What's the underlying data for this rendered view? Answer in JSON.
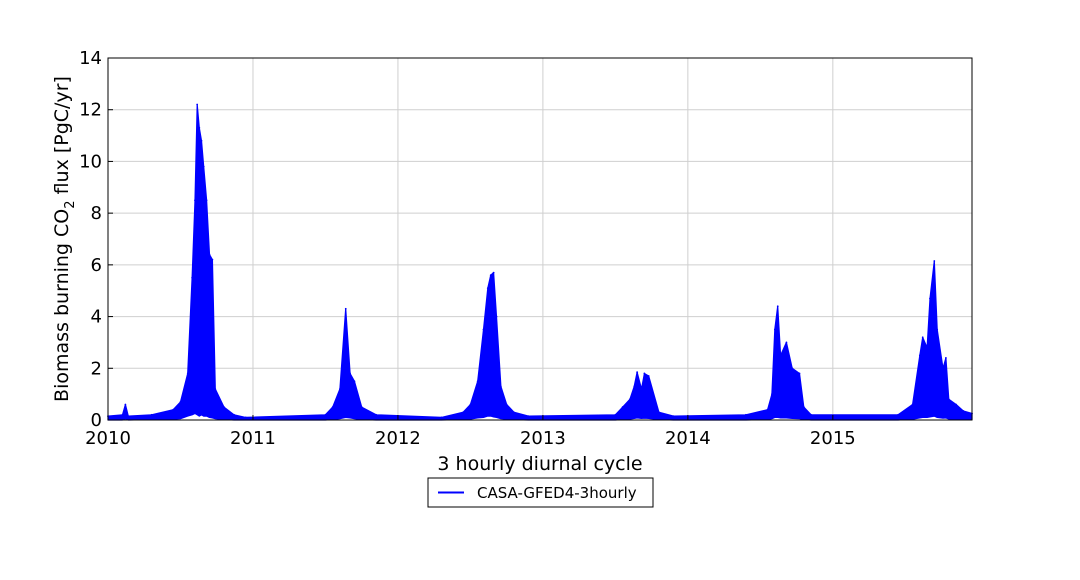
{
  "chart_data": {
    "type": "line",
    "title": "",
    "xlabel": "3 hourly diurnal cycle",
    "ylabel": {
      "prefix": "Biomass burning CO",
      "sub": "2",
      "suffix": " flux [PgC/yr]"
    },
    "xlim": [
      2010.0,
      2015.96
    ],
    "ylim": [
      0,
      14
    ],
    "x_ticks": [
      2010,
      2011,
      2012,
      2013,
      2014,
      2015
    ],
    "y_ticks": [
      0,
      2,
      4,
      6,
      8,
      10,
      12,
      14
    ],
    "grid": true,
    "legend_position": "bottom-center, below the axes",
    "series": [
      {
        "name": "CASA-GFED4-3hourly",
        "color": "#0000ff",
        "style": "dense 3-hourly band between daily minimum and daily maximum",
        "x": [
          2010.0,
          2010.1,
          2010.12,
          2010.14,
          2010.3,
          2010.45,
          2010.5,
          2010.55,
          2010.58,
          2010.6,
          2010.615,
          2010.63,
          2010.645,
          2010.66,
          2010.68,
          2010.7,
          2010.72,
          2010.74,
          2010.8,
          2010.87,
          2010.95,
          2011.5,
          2011.55,
          2011.6,
          2011.64,
          2011.67,
          2011.7,
          2011.75,
          2011.85,
          2012.3,
          2012.45,
          2012.5,
          2012.55,
          2012.59,
          2012.62,
          2012.64,
          2012.66,
          2012.68,
          2012.71,
          2012.75,
          2012.8,
          2012.9,
          2013.5,
          2013.55,
          2013.6,
          2013.63,
          2013.65,
          2013.68,
          2013.7,
          2013.73,
          2013.8,
          2013.9,
          2014.4,
          2014.55,
          2014.58,
          2014.6,
          2014.62,
          2014.64,
          2014.68,
          2014.72,
          2014.77,
          2014.8,
          2014.85,
          2015.45,
          2015.55,
          2015.6,
          2015.62,
          2015.65,
          2015.67,
          2015.7,
          2015.72,
          2015.76,
          2015.78,
          2015.8,
          2015.85,
          2015.9,
          2015.96
        ],
        "y_max": [
          0.15,
          0.2,
          0.6,
          0.15,
          0.2,
          0.4,
          0.7,
          1.8,
          5.5,
          8.5,
          12.2,
          11.3,
          10.8,
          9.8,
          8.5,
          6.4,
          6.2,
          1.2,
          0.5,
          0.2,
          0.1,
          0.2,
          0.5,
          1.2,
          4.3,
          1.8,
          1.5,
          0.5,
          0.2,
          0.1,
          0.3,
          0.6,
          1.5,
          3.5,
          5.1,
          5.6,
          5.7,
          4.0,
          1.3,
          0.6,
          0.3,
          0.15,
          0.2,
          0.5,
          0.8,
          1.3,
          1.85,
          1.2,
          1.8,
          1.7,
          0.3,
          0.15,
          0.2,
          0.4,
          1.0,
          3.5,
          4.4,
          2.5,
          3.0,
          2.0,
          1.8,
          0.5,
          0.2,
          0.2,
          0.6,
          2.5,
          3.2,
          2.8,
          4.7,
          6.15,
          3.5,
          2.0,
          2.4,
          0.8,
          0.6,
          0.35,
          0.25
        ],
        "y_min": [
          0.0,
          0.0,
          0.05,
          0.0,
          0.02,
          0.03,
          0.05,
          0.15,
          0.2,
          0.25,
          0.2,
          0.15,
          0.2,
          0.15,
          0.15,
          0.1,
          0.08,
          0.05,
          0.02,
          0.0,
          0.0,
          0.0,
          0.02,
          0.05,
          0.1,
          0.08,
          0.05,
          0.02,
          0.0,
          0.0,
          0.02,
          0.04,
          0.08,
          0.1,
          0.15,
          0.15,
          0.12,
          0.1,
          0.05,
          0.03,
          0.01,
          0.0,
          0.0,
          0.02,
          0.04,
          0.06,
          0.08,
          0.06,
          0.07,
          0.06,
          0.02,
          0.0,
          0.0,
          0.02,
          0.05,
          0.1,
          0.1,
          0.08,
          0.08,
          0.06,
          0.05,
          0.02,
          0.0,
          0.0,
          0.03,
          0.08,
          0.1,
          0.1,
          0.12,
          0.15,
          0.1,
          0.07,
          0.08,
          0.04,
          0.03,
          0.02,
          0.01
        ]
      }
    ]
  }
}
